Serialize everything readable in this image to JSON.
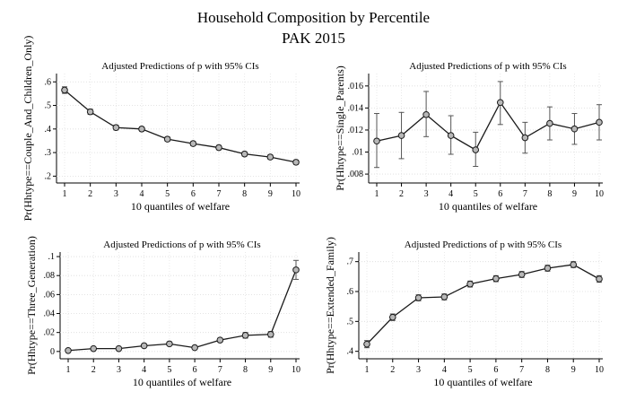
{
  "figure": {
    "title": "Household Composition by Percentile",
    "subtitle": "PAK 2015"
  },
  "chart_data": [
    {
      "type": "line",
      "title": "Adjusted Predictions of p with 95% CIs",
      "xlabel": "10 quantiles of welfare",
      "ylabel": "Pr(Hhtype==Couple_And_Children_Only)",
      "x": [
        1,
        2,
        3,
        4,
        5,
        6,
        7,
        8,
        9,
        10
      ],
      "x_ticks": [
        "1",
        "2",
        "3",
        "4",
        "5",
        "6",
        "7",
        "8",
        "9",
        "10"
      ],
      "y_ticks": [
        ".2",
        ".3",
        ".4",
        ".5",
        ".6"
      ],
      "ylim": [
        0.19,
        0.62
      ],
      "y": [
        0.565,
        0.473,
        0.406,
        0.4,
        0.357,
        0.338,
        0.321,
        0.294,
        0.281,
        0.259
      ],
      "ci_low": [
        0.551,
        0.462,
        0.396,
        0.391,
        0.348,
        0.329,
        0.312,
        0.285,
        0.272,
        0.25
      ],
      "ci_high": [
        0.579,
        0.484,
        0.416,
        0.409,
        0.366,
        0.347,
        0.33,
        0.303,
        0.29,
        0.268
      ],
      "grid": true
    },
    {
      "type": "line",
      "title": "Adjusted Predictions of p with 95% CIs",
      "xlabel": "10 quantiles of welfare",
      "ylabel": "Pr(Hhtype==Single_Parents)",
      "x": [
        1,
        2,
        3,
        4,
        5,
        6,
        7,
        8,
        9,
        10
      ],
      "x_ticks": [
        "1",
        "2",
        "3",
        "4",
        "5",
        "6",
        "7",
        "8",
        "9",
        "10"
      ],
      "y_ticks": [
        ".008",
        ".01",
        ".012",
        ".014",
        ".016"
      ],
      "ylim": [
        0.0076,
        0.0168
      ],
      "y": [
        0.011,
        0.0115,
        0.0134,
        0.0115,
        0.0102,
        0.0145,
        0.0113,
        0.0126,
        0.0121,
        0.0127
      ],
      "ci_low": [
        0.0086,
        0.0094,
        0.0114,
        0.0098,
        0.0087,
        0.0125,
        0.0099,
        0.0111,
        0.0107,
        0.0111
      ],
      "ci_high": [
        0.0135,
        0.0136,
        0.0155,
        0.0133,
        0.0118,
        0.0164,
        0.0127,
        0.0141,
        0.0135,
        0.0143
      ],
      "grid": true
    },
    {
      "type": "line",
      "title": "Adjusted Predictions of p with 95% CIs",
      "xlabel": "10 quantiles of welfare",
      "ylabel": "Pr(Hhtype==Three_Generation)",
      "x": [
        1,
        2,
        3,
        4,
        5,
        6,
        7,
        8,
        9,
        10
      ],
      "x_ticks": [
        "1",
        "2",
        "3",
        "4",
        "5",
        "6",
        "7",
        "8",
        "9",
        "10"
      ],
      "y_ticks": [
        "0",
        ".02",
        ".04",
        ".06",
        ".08",
        ".1"
      ],
      "ylim": [
        -0.003,
        0.101
      ],
      "y": [
        0.001,
        0.003,
        0.003,
        0.006,
        0.008,
        0.004,
        0.012,
        0.017,
        0.018,
        0.086
      ],
      "ci_low": [
        0.0,
        0.002,
        0.002,
        0.005,
        0.007,
        0.003,
        0.01,
        0.014,
        0.015,
        0.076
      ],
      "ci_high": [
        0.002,
        0.004,
        0.004,
        0.008,
        0.01,
        0.005,
        0.014,
        0.02,
        0.021,
        0.096
      ],
      "grid": true
    },
    {
      "type": "line",
      "title": "Adjusted Predictions of p with 95% CIs",
      "xlabel": "10 quantiles of welfare",
      "ylabel": "Pr(Hhtype==Extended_Family)",
      "x": [
        1,
        2,
        3,
        4,
        5,
        6,
        7,
        8,
        9,
        10
      ],
      "x_ticks": [
        "1",
        "2",
        "3",
        "4",
        "5",
        "6",
        "7",
        "8",
        "9",
        "10"
      ],
      "y_ticks": [
        ".4",
        ".5",
        ".6",
        ".7"
      ],
      "ylim": [
        0.39,
        0.72
      ],
      "y": [
        0.424,
        0.514,
        0.579,
        0.582,
        0.625,
        0.643,
        0.657,
        0.678,
        0.69,
        0.642
      ],
      "ci_low": [
        0.412,
        0.503,
        0.569,
        0.572,
        0.615,
        0.633,
        0.647,
        0.668,
        0.68,
        0.631
      ],
      "ci_high": [
        0.436,
        0.525,
        0.589,
        0.592,
        0.635,
        0.653,
        0.667,
        0.688,
        0.7,
        0.653
      ],
      "grid": true
    }
  ]
}
